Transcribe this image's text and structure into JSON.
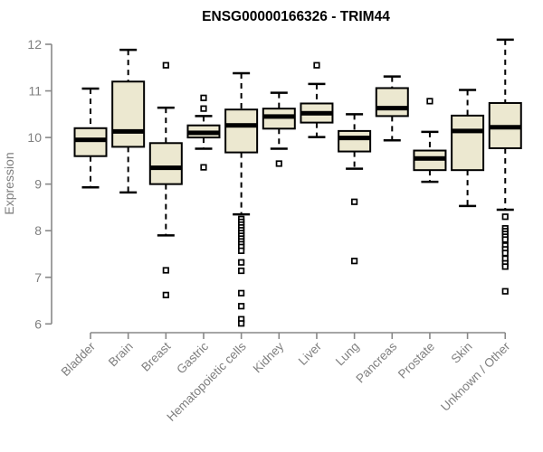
{
  "chart_data": {
    "type": "boxplot",
    "title": "ENSG00000166326 - TRIM44",
    "xlabel": "",
    "ylabel": "Expression",
    "ylim": [
      6,
      12
    ],
    "y_ticks": [
      12,
      11,
      10,
      9,
      8,
      7,
      6
    ],
    "grid": false,
    "legend": false,
    "categories": [
      "Bladder",
      "Brain",
      "Breast",
      "Gastric",
      "Hematopoietic cells",
      "Kidney",
      "Liver",
      "Lung",
      "Pancreas",
      "Prostate",
      "Skin",
      "Unknown / Other"
    ],
    "series": [
      {
        "name": "Bladder",
        "whisker_low": 8.93,
        "q1": 9.6,
        "median": 9.95,
        "q3": 10.2,
        "whisker_high": 11.05,
        "outliers": []
      },
      {
        "name": "Brain",
        "whisker_low": 8.82,
        "q1": 9.8,
        "median": 10.13,
        "q3": 11.2,
        "whisker_high": 11.88,
        "outliers": []
      },
      {
        "name": "Breast",
        "whisker_low": 7.9,
        "q1": 9.0,
        "median": 9.35,
        "q3": 9.88,
        "whisker_high": 10.64,
        "outliers": [
          11.55,
          7.15,
          6.62
        ]
      },
      {
        "name": "Gastric",
        "whisker_low": 9.76,
        "q1": 10.0,
        "median": 10.1,
        "q3": 10.26,
        "whisker_high": 10.46,
        "outliers": [
          10.85,
          10.62,
          9.36
        ]
      },
      {
        "name": "Hematopoietic cells",
        "whisker_low": 8.35,
        "q1": 9.68,
        "median": 10.26,
        "q3": 10.6,
        "whisker_high": 11.38,
        "outliers": [
          8.25,
          8.19,
          8.13,
          8.07,
          8.01,
          7.95,
          7.89,
          7.83,
          7.77,
          7.71,
          7.65,
          7.57,
          7.32,
          7.14,
          6.66,
          6.38,
          6.1,
          6.01
        ]
      },
      {
        "name": "Kidney",
        "whisker_low": 9.76,
        "q1": 10.19,
        "median": 10.45,
        "q3": 10.62,
        "whisker_high": 10.96,
        "outliers": [
          9.44
        ]
      },
      {
        "name": "Liver",
        "whisker_low": 10.01,
        "q1": 10.32,
        "median": 10.52,
        "q3": 10.73,
        "whisker_high": 11.15,
        "outliers": [
          11.55
        ]
      },
      {
        "name": "Lung",
        "whisker_low": 9.33,
        "q1": 9.7,
        "median": 9.99,
        "q3": 10.14,
        "whisker_high": 10.5,
        "outliers": [
          8.62,
          7.35
        ]
      },
      {
        "name": "Pancreas",
        "whisker_low": 9.94,
        "q1": 10.46,
        "median": 10.63,
        "q3": 11.06,
        "whisker_high": 11.31,
        "outliers": []
      },
      {
        "name": "Prostate",
        "whisker_low": 9.05,
        "q1": 9.3,
        "median": 9.55,
        "q3": 9.72,
        "whisker_high": 10.12,
        "outliers": [
          10.78
        ]
      },
      {
        "name": "Skin",
        "whisker_low": 8.53,
        "q1": 9.3,
        "median": 10.14,
        "q3": 10.47,
        "whisker_high": 11.02,
        "outliers": []
      },
      {
        "name": "Unknown / Other",
        "whisker_low": 8.45,
        "q1": 9.77,
        "median": 10.22,
        "q3": 10.74,
        "whisker_high": 12.1,
        "outliers": [
          8.3,
          8.05,
          7.99,
          7.93,
          7.87,
          7.81,
          7.68,
          7.6,
          7.52,
          7.4,
          7.3,
          7.23,
          6.7
        ]
      }
    ],
    "colors": {
      "box_fill": "#ece8d0",
      "box_border": "#000000",
      "median": "#000000",
      "whisker": "#000000",
      "outlier": "#000000",
      "axis": "#888888",
      "tick_label": "#7f7f7f",
      "title": "#000000",
      "background": "#ffffff"
    }
  }
}
